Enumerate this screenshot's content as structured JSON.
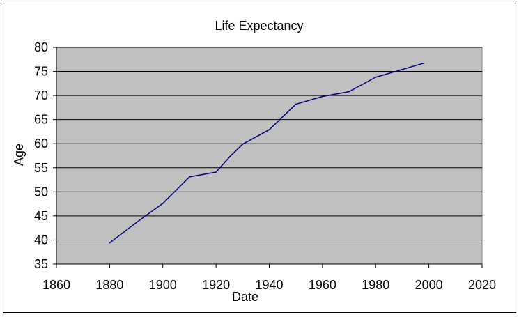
{
  "chart_data": {
    "type": "line",
    "title": "Life Expectancy",
    "xlabel": "Date",
    "ylabel": "Age",
    "xlim": [
      1860,
      2020
    ],
    "ylim": [
      35,
      80
    ],
    "x_ticks": [
      1860,
      1880,
      1900,
      1920,
      1940,
      1960,
      1980,
      2000,
      2020
    ],
    "y_ticks": [
      35,
      40,
      45,
      50,
      55,
      60,
      65,
      70,
      75,
      80
    ],
    "grid": "horizontal",
    "legend": "none",
    "colors": {
      "plot_background": "#c0c0c0",
      "line": "#000080",
      "gridline": "#000000"
    },
    "series": [
      {
        "x": [
          1880,
          1890,
          1900,
          1910,
          1920,
          1925,
          1930,
          1940,
          1950,
          1960,
          1970,
          1980,
          1990,
          1998
        ],
        "values": [
          39.4,
          43.6,
          47.6,
          53.1,
          54.1,
          57.2,
          59.9,
          62.9,
          68.2,
          69.8,
          70.8,
          73.8,
          75.4,
          76.7
        ]
      }
    ]
  }
}
